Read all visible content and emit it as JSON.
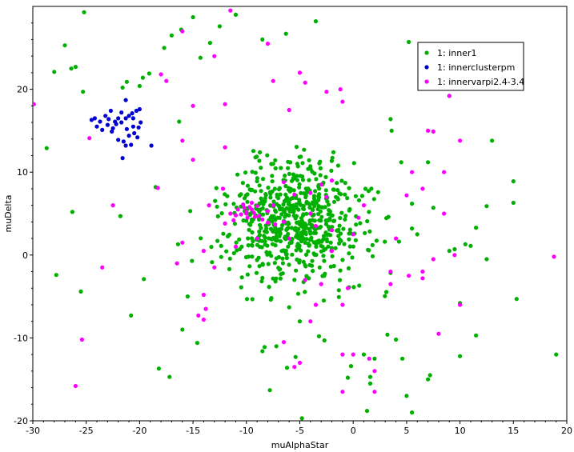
{
  "chart_data": {
    "type": "scatter",
    "xlabel": "muAlphaStar",
    "ylabel": "muDelta",
    "xlim": [
      -30,
      20
    ],
    "ylim": [
      -20,
      30
    ],
    "xticks": [
      -30,
      -25,
      -20,
      -15,
      -10,
      -5,
      0,
      5,
      10,
      15,
      20
    ],
    "yticks": [
      -20,
      -10,
      0,
      10,
      20
    ],
    "grid": false,
    "legend_position": "top-right",
    "series": [
      {
        "name": "1: inner1",
        "color": "#00b000",
        "generated_cluster": {
          "count": 650,
          "center": [
            -5.5,
            4.0
          ],
          "spread": [
            3.3,
            3.8
          ],
          "seed": 7
        },
        "points": [
          [
            -25.2,
            29.3
          ],
          [
            -27.0,
            25.3
          ],
          [
            -26.4,
            22.5
          ],
          [
            -26.0,
            22.7
          ],
          [
            -28.0,
            22.1
          ],
          [
            -25.3,
            19.7
          ],
          [
            -28.7,
            12.9
          ],
          [
            -26.3,
            5.2
          ],
          [
            -21.8,
            4.7
          ],
          [
            -27.8,
            -2.4
          ],
          [
            -25.5,
            -4.4
          ],
          [
            -19.6,
            -2.9
          ],
          [
            -20.8,
            -7.3
          ],
          [
            -18.2,
            -13.7
          ],
          [
            -17.2,
            -14.7
          ],
          [
            -17.0,
            26.5
          ],
          [
            -16.1,
            27.2
          ],
          [
            -15.0,
            28.7
          ],
          [
            -13.4,
            25.6
          ],
          [
            -14.3,
            23.8
          ],
          [
            -12.5,
            27.6
          ],
          [
            -11.0,
            29.0
          ],
          [
            -8.5,
            26.0
          ],
          [
            -6.3,
            26.7
          ],
          [
            -3.5,
            28.2
          ],
          [
            5.2,
            25.7
          ],
          [
            7.2,
            23.4
          ],
          [
            6.2,
            21.0
          ],
          [
            9.0,
            19.2
          ],
          [
            -17.7,
            25.0
          ],
          [
            -21.6,
            20.2
          ],
          [
            -21.2,
            20.9
          ],
          [
            -20.0,
            20.4
          ],
          [
            -19.7,
            21.4
          ],
          [
            -19.1,
            21.9
          ],
          [
            -16.3,
            16.1
          ],
          [
            -18.5,
            8.2
          ],
          [
            -16.4,
            1.3
          ],
          [
            -15.1,
            -0.7
          ],
          [
            -15.5,
            -5.0
          ],
          [
            -14.6,
            -10.6
          ],
          [
            -16.0,
            -9.0
          ],
          [
            3.5,
            16.4
          ],
          [
            3.6,
            15.0
          ],
          [
            4.5,
            11.2
          ],
          [
            7.0,
            11.2
          ],
          [
            5.5,
            6.2
          ],
          [
            7.5,
            5.7
          ],
          [
            12.5,
            5.9
          ],
          [
            15.0,
            6.3
          ],
          [
            10.5,
            1.3
          ],
          [
            11.0,
            1.1
          ],
          [
            11.5,
            3.3
          ],
          [
            5.5,
            3.2
          ],
          [
            6.0,
            2.5
          ],
          [
            9.0,
            0.5
          ],
          [
            9.5,
            0.7
          ],
          [
            10.0,
            -5.8
          ],
          [
            12.5,
            -0.5
          ],
          [
            15.3,
            -5.3
          ],
          [
            11.5,
            -9.7
          ],
          [
            10.0,
            -12.2
          ],
          [
            19.0,
            -12.0
          ],
          [
            13.0,
            13.8
          ],
          [
            15.0,
            8.9
          ],
          [
            7.2,
            -14.5
          ],
          [
            7.0,
            -15.0
          ],
          [
            5.0,
            -17.0
          ],
          [
            5.5,
            -19.0
          ],
          [
            -4.8,
            -19.7
          ],
          [
            -7.8,
            -16.3
          ],
          [
            -6.2,
            -13.6
          ],
          [
            -8.5,
            -11.6
          ],
          [
            -8.3,
            -11.1
          ],
          [
            -7.2,
            -11.0
          ],
          [
            -5.4,
            -12.3
          ],
          [
            -3.2,
            -9.8
          ],
          [
            -2.7,
            -10.3
          ],
          [
            -0.2,
            -13.4
          ],
          [
            1.0,
            -12.0
          ],
          [
            1.6,
            -14.7
          ],
          [
            1.6,
            -15.5
          ],
          [
            1.3,
            -18.8
          ],
          [
            -0.5,
            -14.8
          ],
          [
            2.0,
            -12.5
          ],
          [
            3.2,
            -9.6
          ],
          [
            4.0,
            -10.2
          ],
          [
            4.6,
            -12.5
          ],
          [
            -6.0,
            -6.3
          ],
          [
            -5.0,
            -8.0
          ]
        ]
      },
      {
        "name": "1: innerclusterpm",
        "color": "#0000d0",
        "points": [
          [
            -23.2,
            16.8
          ],
          [
            -22.7,
            17.4
          ],
          [
            -21.3,
            18.7
          ],
          [
            -22.0,
            16.5
          ],
          [
            -21.7,
            16.0
          ],
          [
            -21.3,
            16.5
          ],
          [
            -21.0,
            16.8
          ],
          [
            -20.7,
            17.1
          ],
          [
            -20.3,
            17.4
          ],
          [
            -20.0,
            17.6
          ],
          [
            -22.3,
            16.1
          ],
          [
            -23.0,
            15.7
          ],
          [
            -23.5,
            15.1
          ],
          [
            -24.0,
            15.5
          ],
          [
            -24.2,
            16.5
          ],
          [
            -22.5,
            15.3
          ],
          [
            -21.2,
            15.2
          ],
          [
            -20.6,
            15.5
          ],
          [
            -21.0,
            14.4
          ],
          [
            -20.5,
            14.7
          ],
          [
            -20.1,
            15.4
          ],
          [
            -19.9,
            16.0
          ],
          [
            -21.5,
            13.7
          ],
          [
            -22.0,
            13.9
          ],
          [
            -20.8,
            13.3
          ],
          [
            -21.6,
            11.7
          ],
          [
            -20.2,
            14.2
          ],
          [
            -22.2,
            15.8
          ],
          [
            -22.9,
            16.4
          ],
          [
            -21.7,
            17.2
          ],
          [
            -24.5,
            16.3
          ],
          [
            -23.7,
            16.1
          ],
          [
            -18.9,
            13.2
          ],
          [
            -20.6,
            16.5
          ],
          [
            -22.6,
            14.9
          ],
          [
            -21.3,
            13.2
          ]
        ]
      },
      {
        "name": "1: innervarpi2.4-3.4",
        "color": "#ff00ff",
        "points": [
          [
            -29.9,
            18.2
          ],
          [
            -24.7,
            14.1
          ],
          [
            -22.5,
            6.0
          ],
          [
            -18.3,
            8.1
          ],
          [
            -25.4,
            -10.2
          ],
          [
            -26.0,
            -15.8
          ],
          [
            -18.0,
            21.8
          ],
          [
            -16.0,
            27.0
          ],
          [
            -15.0,
            18.0
          ],
          [
            -13.0,
            24.0
          ],
          [
            -12.0,
            18.2
          ],
          [
            -11.5,
            29.5
          ],
          [
            -8.0,
            25.5
          ],
          [
            -7.5,
            21.0
          ],
          [
            -6.0,
            17.5
          ],
          [
            -5.0,
            22.0
          ],
          [
            -4.5,
            20.8
          ],
          [
            -2.5,
            19.7
          ],
          [
            -1.2,
            20.0
          ],
          [
            -1.0,
            18.5
          ],
          [
            -2.0,
            9.0
          ],
          [
            -2.5,
            7.0
          ],
          [
            -3.0,
            8.5
          ],
          [
            -4.0,
            7.5
          ],
          [
            -4.0,
            5.0
          ],
          [
            -3.5,
            3.5
          ],
          [
            -2.0,
            3.0
          ],
          [
            -6.5,
            4.0
          ],
          [
            -5.5,
            7.3
          ],
          [
            -6.5,
            8.8
          ],
          [
            -7.5,
            6.0
          ],
          [
            -8.0,
            5.3
          ],
          [
            -8.0,
            3.9
          ],
          [
            -9.0,
            5.9
          ],
          [
            -9.5,
            5.5
          ],
          [
            -10.0,
            5.2
          ],
          [
            -10.3,
            6.1
          ],
          [
            -10.5,
            4.9
          ],
          [
            -10.8,
            5.5
          ],
          [
            -11.0,
            4.8
          ],
          [
            -9.2,
            4.6
          ],
          [
            -9.7,
            5.8
          ],
          [
            -9.9,
            4.5
          ],
          [
            -9.5,
            6.3
          ],
          [
            -10.2,
            5.7
          ],
          [
            -11.5,
            5.0
          ],
          [
            -11.2,
            4.2
          ],
          [
            -12.0,
            3.8
          ],
          [
            -10.0,
            5.0
          ],
          [
            -9.3,
            5.1
          ],
          [
            -8.8,
            4.7
          ],
          [
            -8.5,
            4.3
          ],
          [
            -7.3,
            3.7
          ],
          [
            -9.0,
            2.0
          ],
          [
            -11.0,
            1.0
          ],
          [
            -12.2,
            8.0
          ],
          [
            -13.5,
            6.0
          ],
          [
            -14.0,
            0.5
          ],
          [
            -13.0,
            -1.5
          ],
          [
            -14.0,
            -4.8
          ],
          [
            -13.8,
            -6.5
          ],
          [
            -14.5,
            -7.3
          ],
          [
            -14.0,
            -7.8
          ],
          [
            -16.0,
            1.5
          ],
          [
            -16.5,
            -1.0
          ],
          [
            -6.0,
            2.0
          ],
          [
            -4.5,
            -3.0
          ],
          [
            -3.0,
            -3.5
          ],
          [
            -0.5,
            -4.0
          ],
          [
            -1.0,
            -6.0
          ],
          [
            -3.5,
            -6.0
          ],
          [
            -4.0,
            -8.0
          ],
          [
            -6.5,
            -10.5
          ],
          [
            -5.0,
            -13.0
          ],
          [
            -5.5,
            -13.5
          ],
          [
            -1.0,
            -12.0
          ],
          [
            0.0,
            -12.0
          ],
          [
            1.5,
            -12.5
          ],
          [
            2.0,
            -14.0
          ],
          [
            2.0,
            -16.5
          ],
          [
            -1.0,
            -16.5
          ],
          [
            3.5,
            -3.5
          ],
          [
            5.2,
            -2.5
          ],
          [
            6.5,
            -2.8
          ],
          [
            5.0,
            7.2
          ],
          [
            5.5,
            10.0
          ],
          [
            6.5,
            8.0
          ],
          [
            8.5,
            10.0
          ],
          [
            10.0,
            13.8
          ],
          [
            9.0,
            19.2
          ],
          [
            7.0,
            15.0
          ],
          [
            8.5,
            5.0
          ],
          [
            9.5,
            0.0
          ],
          [
            10.0,
            -6.0
          ],
          [
            7.5,
            -0.5
          ],
          [
            6.5,
            -2.0
          ],
          [
            4.0,
            2.0
          ],
          [
            3.5,
            -2.0
          ],
          [
            18.8,
            -0.2
          ],
          [
            1.0,
            6.0
          ],
          [
            0.5,
            4.5
          ],
          [
            0.0,
            2.5
          ],
          [
            -2.0,
            0.5
          ],
          [
            -12.0,
            13.0
          ],
          [
            -16.0,
            13.8
          ],
          [
            -15.0,
            11.5
          ],
          [
            -17.5,
            21.0
          ],
          [
            -23.5,
            -1.5
          ],
          [
            7.5,
            14.9
          ],
          [
            8.0,
            -9.5
          ]
        ]
      }
    ]
  }
}
